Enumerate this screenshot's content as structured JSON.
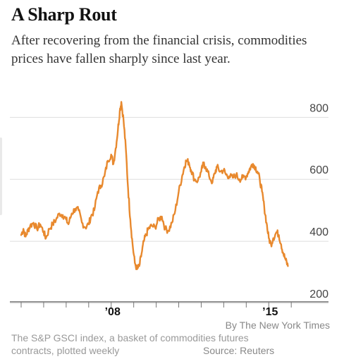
{
  "title": "A Sharp Rout",
  "subtitle": "After recovering from the financial crisis, commodities prices have fallen sharply since last year.",
  "credit": "By The New York Times",
  "note": "The S&P GSCI index, a basket of commodities futures contracts, plotted weekly",
  "source": "Source: Reuters",
  "colors": {
    "line": "#e8892e",
    "grid": "#dddddd",
    "axis": "#222222",
    "label": "#444444"
  },
  "chart_data": {
    "type": "line",
    "title": "A Sharp Rout",
    "xlabel": "",
    "ylabel": "",
    "ylim": [
      200,
      860
    ],
    "xlim": [
      2004.0,
      2015.9
    ],
    "yticks": [
      800,
      600,
      400,
      200
    ],
    "xtick_labels": [
      {
        "x": 2008.0,
        "label": "’08"
      },
      {
        "x": 2015.0,
        "label": "’15"
      }
    ],
    "grid": true,
    "series": [
      {
        "name": "",
        "points": [
          [
            2004.0,
            420
          ],
          [
            2004.1,
            440
          ],
          [
            2004.2,
            415
          ],
          [
            2004.3,
            435
          ],
          [
            2004.4,
            450
          ],
          [
            2004.55,
            460
          ],
          [
            2004.7,
            440
          ],
          [
            2004.85,
            455
          ],
          [
            2005.0,
            430
          ],
          [
            2005.1,
            410
          ],
          [
            2005.25,
            440
          ],
          [
            2005.4,
            455
          ],
          [
            2005.55,
            470
          ],
          [
            2005.7,
            490
          ],
          [
            2005.85,
            485
          ],
          [
            2006.0,
            470
          ],
          [
            2006.1,
            455
          ],
          [
            2006.25,
            490
          ],
          [
            2006.4,
            505
          ],
          [
            2006.55,
            500
          ],
          [
            2006.7,
            460
          ],
          [
            2006.85,
            445
          ],
          [
            2007.0,
            455
          ],
          [
            2007.1,
            480
          ],
          [
            2007.25,
            500
          ],
          [
            2007.4,
            560
          ],
          [
            2007.55,
            580
          ],
          [
            2007.7,
            610
          ],
          [
            2007.85,
            660
          ],
          [
            2008.0,
            680
          ],
          [
            2008.1,
            650
          ],
          [
            2008.2,
            700
          ],
          [
            2008.3,
            760
          ],
          [
            2008.38,
            820
          ],
          [
            2008.45,
            850
          ],
          [
            2008.55,
            790
          ],
          [
            2008.65,
            700
          ],
          [
            2008.75,
            570
          ],
          [
            2008.85,
            470
          ],
          [
            2008.95,
            390
          ],
          [
            2009.05,
            330
          ],
          [
            2009.15,
            310
          ],
          [
            2009.25,
            320
          ],
          [
            2009.35,
            360
          ],
          [
            2009.45,
            400
          ],
          [
            2009.55,
            420
          ],
          [
            2009.65,
            440
          ],
          [
            2009.8,
            450
          ],
          [
            2009.95,
            445
          ],
          [
            2010.1,
            470
          ],
          [
            2010.25,
            480
          ],
          [
            2010.4,
            440
          ],
          [
            2010.55,
            435
          ],
          [
            2010.7,
            460
          ],
          [
            2010.85,
            500
          ],
          [
            2011.0,
            560
          ],
          [
            2011.15,
            610
          ],
          [
            2011.25,
            640
          ],
          [
            2011.33,
            660
          ],
          [
            2011.45,
            655
          ],
          [
            2011.55,
            630
          ],
          [
            2011.7,
            600
          ],
          [
            2011.85,
            595
          ],
          [
            2012.0,
            625
          ],
          [
            2012.1,
            650
          ],
          [
            2012.2,
            640
          ],
          [
            2012.35,
            610
          ],
          [
            2012.5,
            590
          ],
          [
            2012.6,
            620
          ],
          [
            2012.7,
            640
          ],
          [
            2012.85,
            625
          ],
          [
            2013.0,
            630
          ],
          [
            2013.1,
            615
          ],
          [
            2013.25,
            610
          ],
          [
            2013.4,
            605
          ],
          [
            2013.55,
            615
          ],
          [
            2013.7,
            600
          ],
          [
            2013.85,
            605
          ],
          [
            2014.0,
            610
          ],
          [
            2014.1,
            625
          ],
          [
            2014.2,
            640
          ],
          [
            2014.3,
            650
          ],
          [
            2014.4,
            640
          ],
          [
            2014.5,
            625
          ],
          [
            2014.6,
            600
          ],
          [
            2014.7,
            560
          ],
          [
            2014.8,
            510
          ],
          [
            2014.9,
            460
          ],
          [
            2015.0,
            410
          ],
          [
            2015.1,
            390
          ],
          [
            2015.2,
            410
          ],
          [
            2015.35,
            430
          ],
          [
            2015.45,
            420
          ],
          [
            2015.55,
            390
          ],
          [
            2015.65,
            360
          ],
          [
            2015.75,
            340
          ],
          [
            2015.85,
            320
          ]
        ]
      }
    ]
  }
}
